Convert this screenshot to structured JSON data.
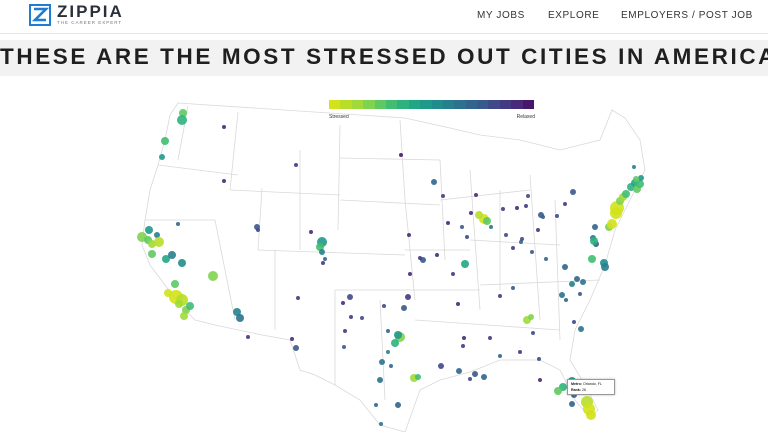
{
  "header": {
    "brand": "ZIPPIA",
    "tagline": "THE CAREER EXPERT",
    "nav": [
      "MY JOBS",
      "EXPLORE",
      "EMPLOYERS / POST JOB"
    ]
  },
  "title": "THESE ARE THE MOST STRESSED OUT CITIES IN AMERICA",
  "legend": {
    "low_label": "Stressed",
    "high_label": "Relaxed",
    "colors": [
      "#d2e21b",
      "#b8de29",
      "#a0da39",
      "#7fd34e",
      "#5ec962",
      "#40bd72",
      "#2db27d",
      "#21a685",
      "#1f998a",
      "#228c8d",
      "#277f8e",
      "#2c728e",
      "#31658e",
      "#38598c",
      "#3e4989",
      "#443a83",
      "#472a7a",
      "#481769"
    ]
  },
  "tooltip": {
    "metro_label": "Metro:",
    "metro_value": "Orlando, FL",
    "rank_label": "Rank:",
    "rank_value": "26"
  },
  "colors": {
    "brand_blue": "#1f7bd3",
    "state_border": "#d9d9d9"
  }
}
